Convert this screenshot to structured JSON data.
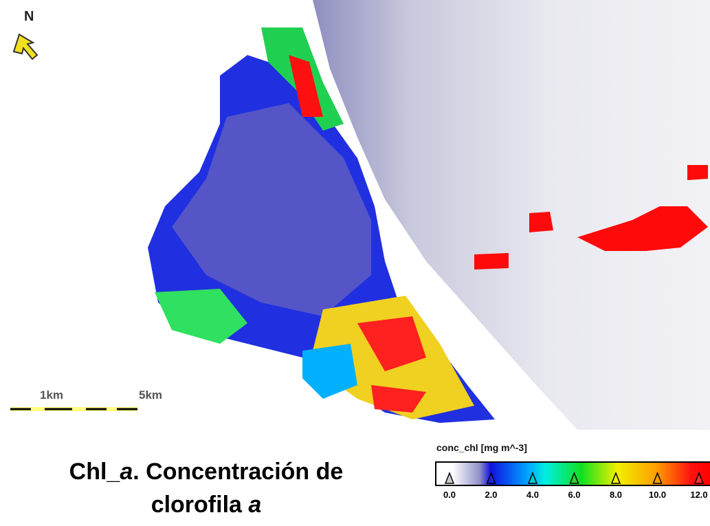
{
  "north_label": "N",
  "scale_bar": {
    "labels": [
      "1km",
      "5km"
    ]
  },
  "caption": {
    "line1": [
      "Chl_",
      "a",
      ". Concentración de"
    ],
    "line2": [
      "clorofila",
      "a"
    ]
  },
  "colorbar": {
    "title": "conc_chl [mg m^-3]",
    "ticks": [
      "0.0",
      "2.0",
      "4.0",
      "6.0",
      "8.0",
      "10.0",
      "12.0"
    ]
  }
}
